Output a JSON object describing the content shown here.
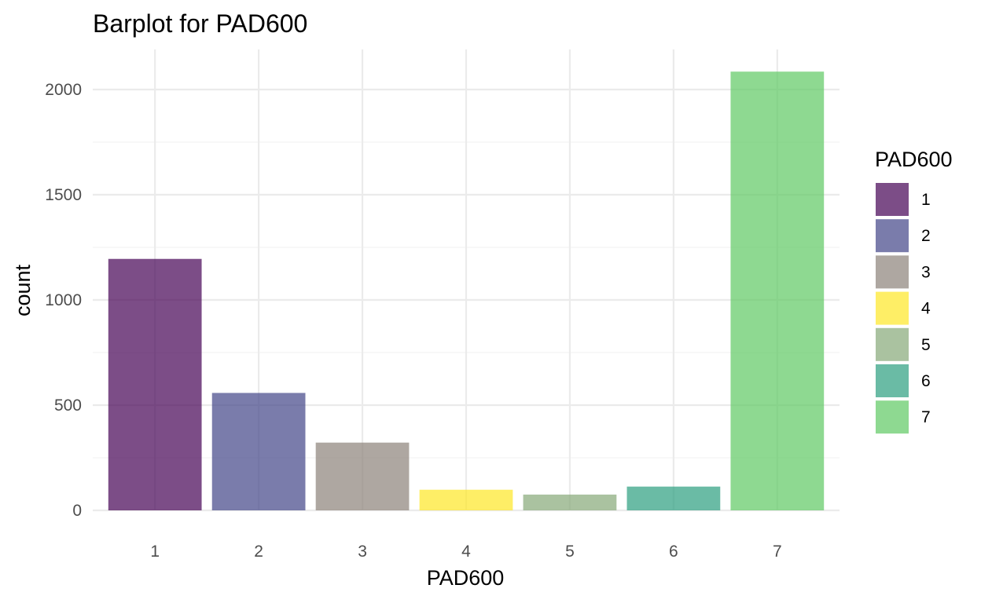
{
  "chart_data": {
    "type": "bar",
    "title": "Barplot for PAD600",
    "xlabel": "PAD600",
    "ylabel": "count",
    "categories": [
      "1",
      "2",
      "3",
      "4",
      "5",
      "6",
      "7"
    ],
    "values": [
      1195,
      558,
      322,
      98,
      75,
      113,
      2085
    ],
    "colors": [
      "#440154",
      "#414487",
      "#8C8179",
      "#FDE725",
      "#86A878",
      "#2B9E7F",
      "#5EC962"
    ],
    "bar_opacity": 0.7,
    "ylim": [
      0,
      2200
    ],
    "yticks": [
      0,
      500,
      1000,
      1500,
      2000
    ],
    "yticks_labels": [
      "0",
      "500",
      "1000",
      "1500",
      "2000"
    ],
    "yticks_minor": [
      250,
      750,
      1250,
      1750
    ],
    "grid": true,
    "legend": {
      "title": "PAD600",
      "position": "right",
      "labels": [
        "1",
        "2",
        "3",
        "4",
        "5",
        "6",
        "7"
      ]
    }
  }
}
